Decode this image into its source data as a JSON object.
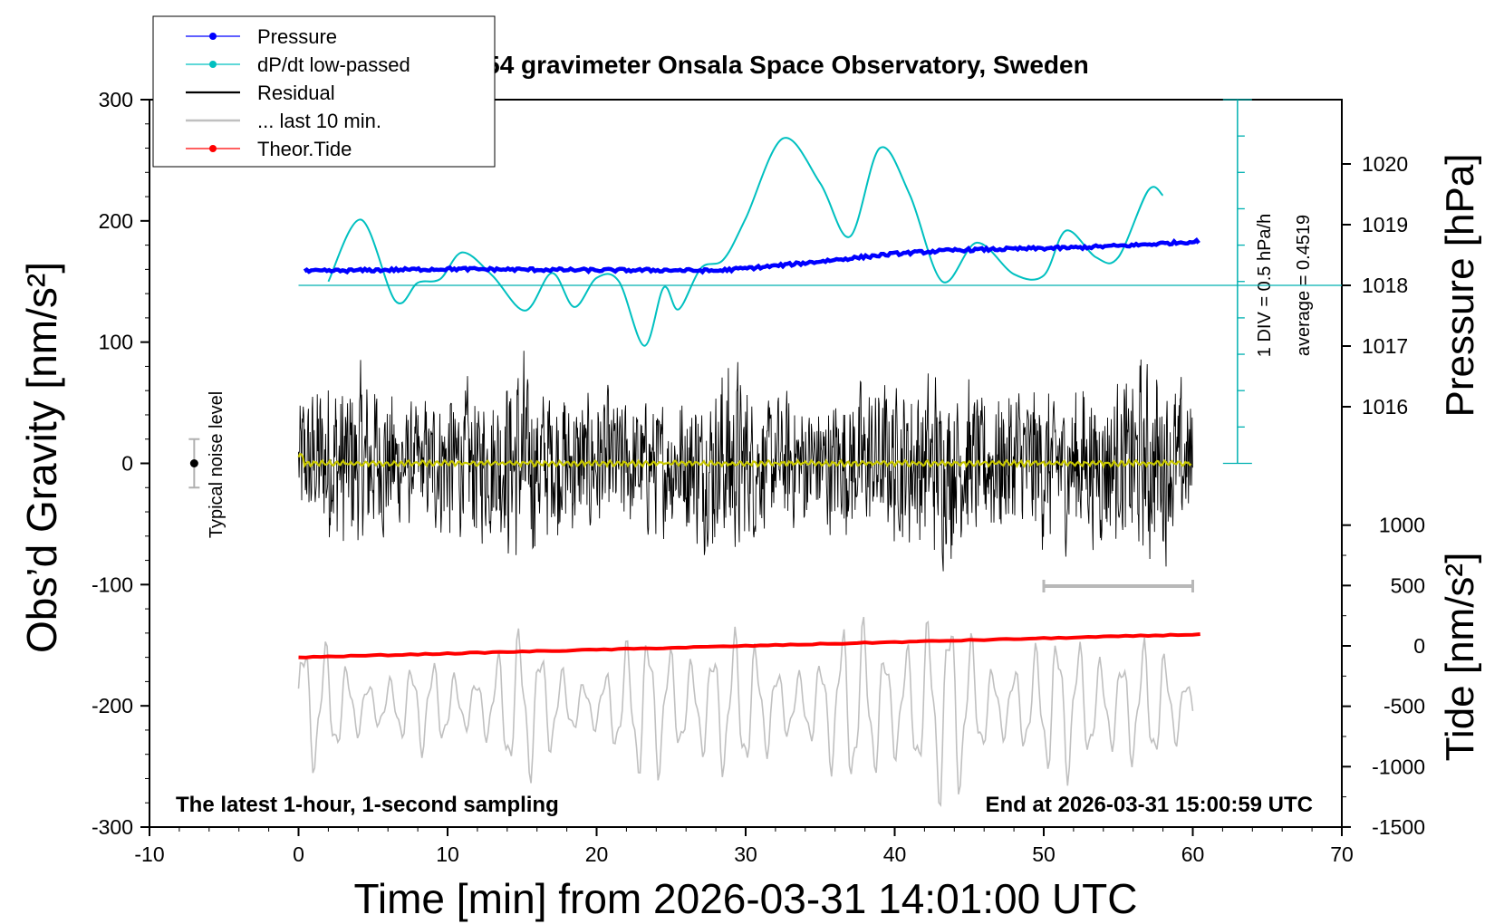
{
  "chart_data": {
    "type": "line",
    "title": "SCG_054 gravimeter Onsala Space Observatory, Sweden",
    "xlabel": "Time [min] from 2026-03-31 14:01:00 UTC",
    "ylabel_left": "Obs’d Gravity [nm/s²]",
    "ylabel_right_top": "Pressure [hPa]",
    "ylabel_right_bottom": "Tide [nm/s²]",
    "xlim": [
      -10,
      70
    ],
    "ylim_left": [
      -300,
      300
    ],
    "x_ticks": [
      "-10",
      "0",
      "10",
      "20",
      "30",
      "40",
      "50",
      "60",
      "70"
    ],
    "y_ticks_left": [
      "300",
      "200",
      "100",
      "0",
      "-100",
      "-200",
      "-300"
    ],
    "pressure_ticks": [
      "1020",
      "1019",
      "1018",
      "1017",
      "1016"
    ],
    "tide_ticks": [
      "1000",
      "500",
      "0",
      "-500",
      "-1000",
      "-1500"
    ],
    "legend": {
      "placement": "top-left",
      "entries": [
        {
          "name": "Pressure",
          "color": "#0000ff",
          "marker": true
        },
        {
          "name": "dP/dt low-passed",
          "color": "#00c0c0",
          "marker": true
        },
        {
          "name": "Residual",
          "color": "#000000",
          "marker": false
        },
        {
          "name": "... last 10 min.",
          "color": "#c0c0c0",
          "marker": false
        },
        {
          "name": "Theor.Tide",
          "color": "#ff0000",
          "marker": true
        }
      ]
    },
    "annotations": {
      "bottom_left": "The latest 1-hour, 1-second sampling",
      "bottom_right": "End at 2026-03-31 15:00:59 UTC",
      "dpdt_scale": "1 DIV = 0.5 hPa/h",
      "dpdt_average": "average = 0.4519",
      "noise_label": "Typical noise level"
    },
    "series": [
      {
        "name": "Pressure",
        "color": "#0000ff",
        "units": "hPa",
        "x": [
          0,
          5,
          10,
          15,
          20,
          25,
          28,
          32,
          36,
          40,
          44,
          48,
          52,
          56,
          60
        ],
        "values": [
          1018.23,
          1018.25,
          1018.27,
          1018.26,
          1018.25,
          1018.25,
          1018.24,
          1018.32,
          1018.42,
          1018.52,
          1018.58,
          1018.6,
          1018.62,
          1018.66,
          1018.72
        ]
      },
      {
        "name": "dP/dt low-passed",
        "color": "#00c0c0",
        "units": "nm/s²",
        "x": [
          2,
          4.2,
          6.5,
          8,
          9.5,
          11,
          13,
          15.2,
          17,
          18.5,
          20,
          21.5,
          23.2,
          24.5,
          25.5,
          27,
          28.5,
          30,
          32.5,
          35,
          37,
          39,
          41,
          43.2,
          45.5,
          48,
          50,
          51.5,
          53.5,
          55,
          57,
          58
        ],
        "values": [
          150,
          201,
          134,
          149,
          152,
          174,
          155,
          126,
          157,
          129,
          153,
          150,
          97,
          145,
          127,
          161,
          168,
          202,
          268,
          231,
          187,
          260,
          222,
          150,
          182,
          156,
          155,
          192,
          170,
          170,
          225,
          221
        ]
      },
      {
        "name": "Residual",
        "color": "#000000",
        "units": "nm/s²",
        "x": [
          0,
          60
        ],
        "values": [
          0,
          0
        ],
        "envelope_x": [
          0,
          2,
          5,
          8,
          10,
          13,
          15,
          16,
          19,
          22,
          25,
          28,
          29,
          31,
          35,
          38,
          41,
          43,
          46,
          49,
          52,
          55,
          57,
          60
        ],
        "envelope_amp": [
          75,
          100,
          95,
          60,
          85,
          80,
          120,
          90,
          80,
          75,
          70,
          95,
          120,
          70,
          75,
          85,
          90,
          100,
          80,
          90,
          85,
          90,
          110,
          75
        ]
      },
      {
        "name": "... last 10 min.",
        "color": "#c0c0c0",
        "units": "nm/s²",
        "x": [
          0,
          60
        ],
        "values": [
          -200,
          -200
        ],
        "envelope_x": [
          0,
          1,
          3,
          5,
          8,
          11,
          14,
          17,
          20,
          23,
          25,
          28,
          31,
          35,
          38,
          41,
          44,
          47,
          50,
          53,
          56,
          60
        ],
        "envelope_amp": [
          85,
          65,
          45,
          40,
          45,
          35,
          85,
          50,
          40,
          70,
          85,
          75,
          60,
          55,
          90,
          100,
          90,
          60,
          60,
          85,
          70,
          30
        ]
      },
      {
        "name": "Theor.Tide",
        "color": "#ff0000",
        "units": "nm/s²",
        "x": [
          0,
          60.5
        ],
        "values": [
          -160,
          -141
        ]
      }
    ],
    "noise_bar": {
      "x": -7,
      "center": 0,
      "half_range": 20
    },
    "grey_bar_x": [
      50,
      60
    ]
  }
}
